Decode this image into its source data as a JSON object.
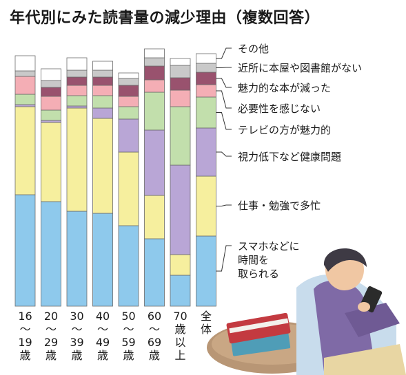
{
  "chart_data": {
    "type": "bar",
    "stacked": true,
    "title": "年代別にみた読書量の減少理由（複数回答）",
    "categories": [
      [
        "16",
        "〜",
        "19",
        "歳"
      ],
      [
        "20",
        "〜",
        "29",
        "歳"
      ],
      [
        "30",
        "〜",
        "39",
        "歳"
      ],
      [
        "40",
        "〜",
        "49",
        "歳"
      ],
      [
        "50",
        "〜",
        "59",
        "歳"
      ],
      [
        "60",
        "〜",
        "69",
        "歳"
      ],
      [
        "70",
        "歳",
        "以",
        "上"
      ],
      [
        "全",
        "体"
      ]
    ],
    "series": [
      {
        "name": "スマホなどに時間を取られる",
        "label_lines": [
          "スマホなどに",
          "時間を",
          "取られる"
        ],
        "color": "#8ec9ec",
        "values": [
          162,
          152,
          138,
          135,
          117,
          98,
          45,
          102
        ]
      },
      {
        "name": "仕事・勉強で多忙",
        "label_lines": [
          "仕事・勉強で多忙"
        ],
        "color": "#f6ef9e",
        "values": [
          128,
          115,
          150,
          138,
          107,
          63,
          30,
          87
        ]
      },
      {
        "name": "視力低下など健康問題",
        "label_lines": [
          "視力低下など健康問題"
        ],
        "color": "#b9a6d6",
        "values": [
          3,
          3,
          3,
          15,
          48,
          95,
          130,
          70
        ]
      },
      {
        "name": "テレビの方が魅力的",
        "label_lines": [
          "テレビの方が魅力的"
        ],
        "color": "#c2dfac",
        "values": [
          15,
          15,
          15,
          18,
          18,
          55,
          85,
          45
        ]
      },
      {
        "name": "必要性を感じない",
        "label_lines": [
          "必要性を感じない"
        ],
        "color": "#f4aeb5",
        "values": [
          26,
          20,
          15,
          15,
          15,
          18,
          24,
          18
        ]
      },
      {
        "name": "魅力的な本が減った",
        "label_lines": [
          "魅力的な本が減った"
        ],
        "color": "#99526e",
        "values": [
          0,
          13,
          12,
          12,
          16,
          20,
          18,
          18
        ]
      },
      {
        "name": "近所に本屋や図書館がない",
        "label_lines": [
          "近所に本屋や図書館がない"
        ],
        "color": "#c9c9c9",
        "values": [
          8,
          10,
          10,
          10,
          10,
          12,
          18,
          13
        ]
      },
      {
        "name": "その他",
        "label_lines": [
          "その他"
        ],
        "color": "#ffffff",
        "values": [
          22,
          17,
          18,
          13,
          8,
          13,
          10,
          14
        ]
      }
    ],
    "ylim": [
      0,
      380
    ],
    "grid": false,
    "legend": "right"
  }
}
